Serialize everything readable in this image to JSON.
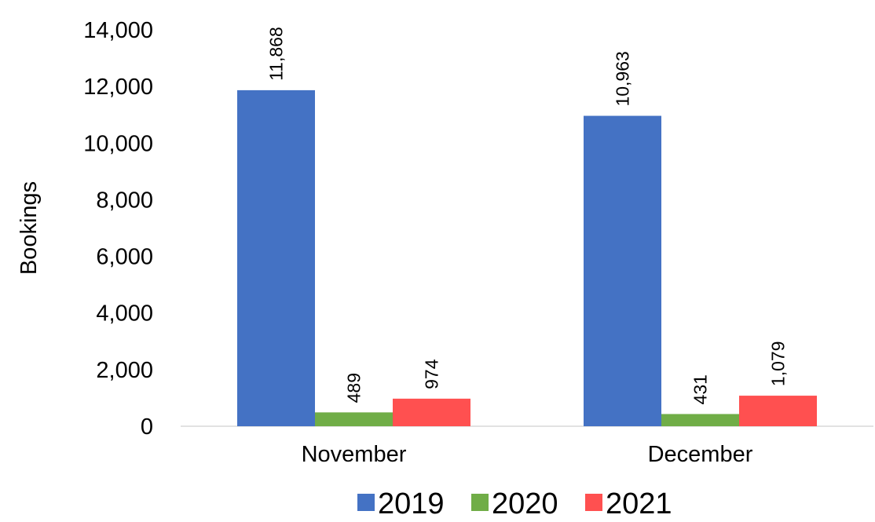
{
  "chart_data": {
    "type": "bar",
    "title": "",
    "xlabel": "",
    "ylabel": "Bookings",
    "ylim": [
      0,
      14000
    ],
    "yticks": [
      "0",
      "2,000",
      "4,000",
      "6,000",
      "8,000",
      "10,000",
      "12,000",
      "14,000"
    ],
    "categories": [
      "November",
      "December"
    ],
    "series": [
      {
        "name": "2019",
        "color": "#4472c4",
        "values": [
          11868,
          10963
        ],
        "labels": [
          "11,868",
          "10,963"
        ]
      },
      {
        "name": "2020",
        "color": "#70ad47",
        "values": [
          489,
          431
        ],
        "labels": [
          "489",
          "431"
        ]
      },
      {
        "name": "2021",
        "color": "#ff5050",
        "values": [
          974,
          1079
        ],
        "labels": [
          "974",
          "1,079"
        ]
      }
    ],
    "legend": "bottom",
    "grid": false
  }
}
